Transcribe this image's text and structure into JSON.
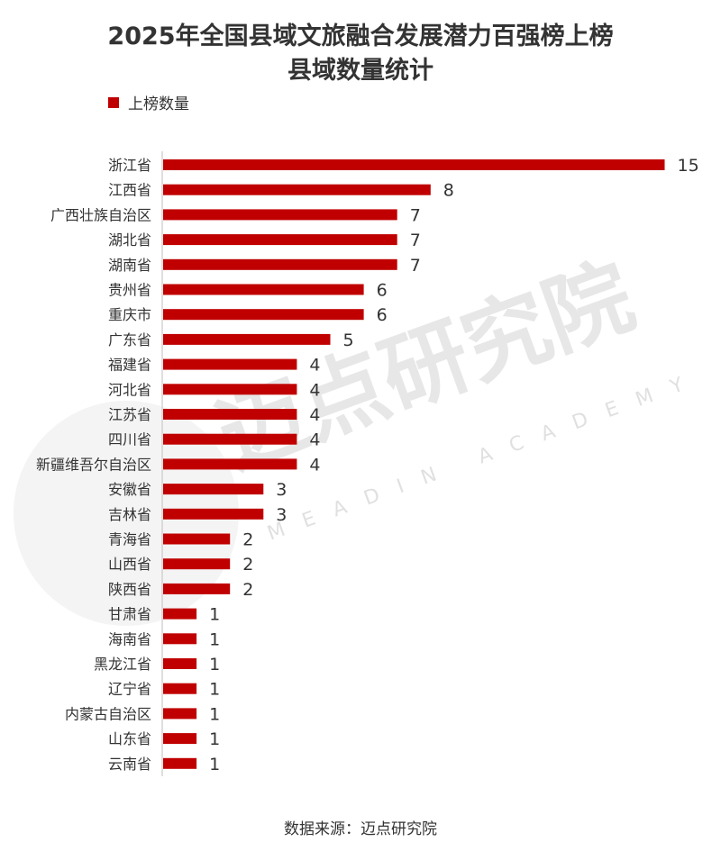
{
  "chart_data": {
    "type": "bar",
    "orientation": "horizontal",
    "title_line1": "2025年全国县域文旅融合发展潜力百强榜上榜",
    "title_line2": "县域数量统计",
    "legend": "上榜数量",
    "source": "数据来源：迈点研究院",
    "color": "#c00000",
    "xlim": [
      0,
      15
    ],
    "grid": false,
    "categories": [
      "浙江省",
      "江西省",
      "广西壮族自治区",
      "湖北省",
      "湖南省",
      "贵州省",
      "重庆市",
      "广东省",
      "福建省",
      "河北省",
      "江苏省",
      "四川省",
      "新疆维吾尔自治区",
      "安徽省",
      "吉林省",
      "青海省",
      "山西省",
      "陕西省",
      "甘肃省",
      "海南省",
      "黑龙江省",
      "辽宁省",
      "内蒙古自治区",
      "山东省",
      "云南省"
    ],
    "values": [
      15,
      8,
      7,
      7,
      7,
      6,
      6,
      5,
      4,
      4,
      4,
      4,
      4,
      3,
      3,
      2,
      2,
      2,
      1,
      1,
      1,
      1,
      1,
      1,
      1
    ]
  },
  "watermark": {
    "name": "迈点研究院",
    "subtitle": "MEADIN ACADEMY"
  }
}
